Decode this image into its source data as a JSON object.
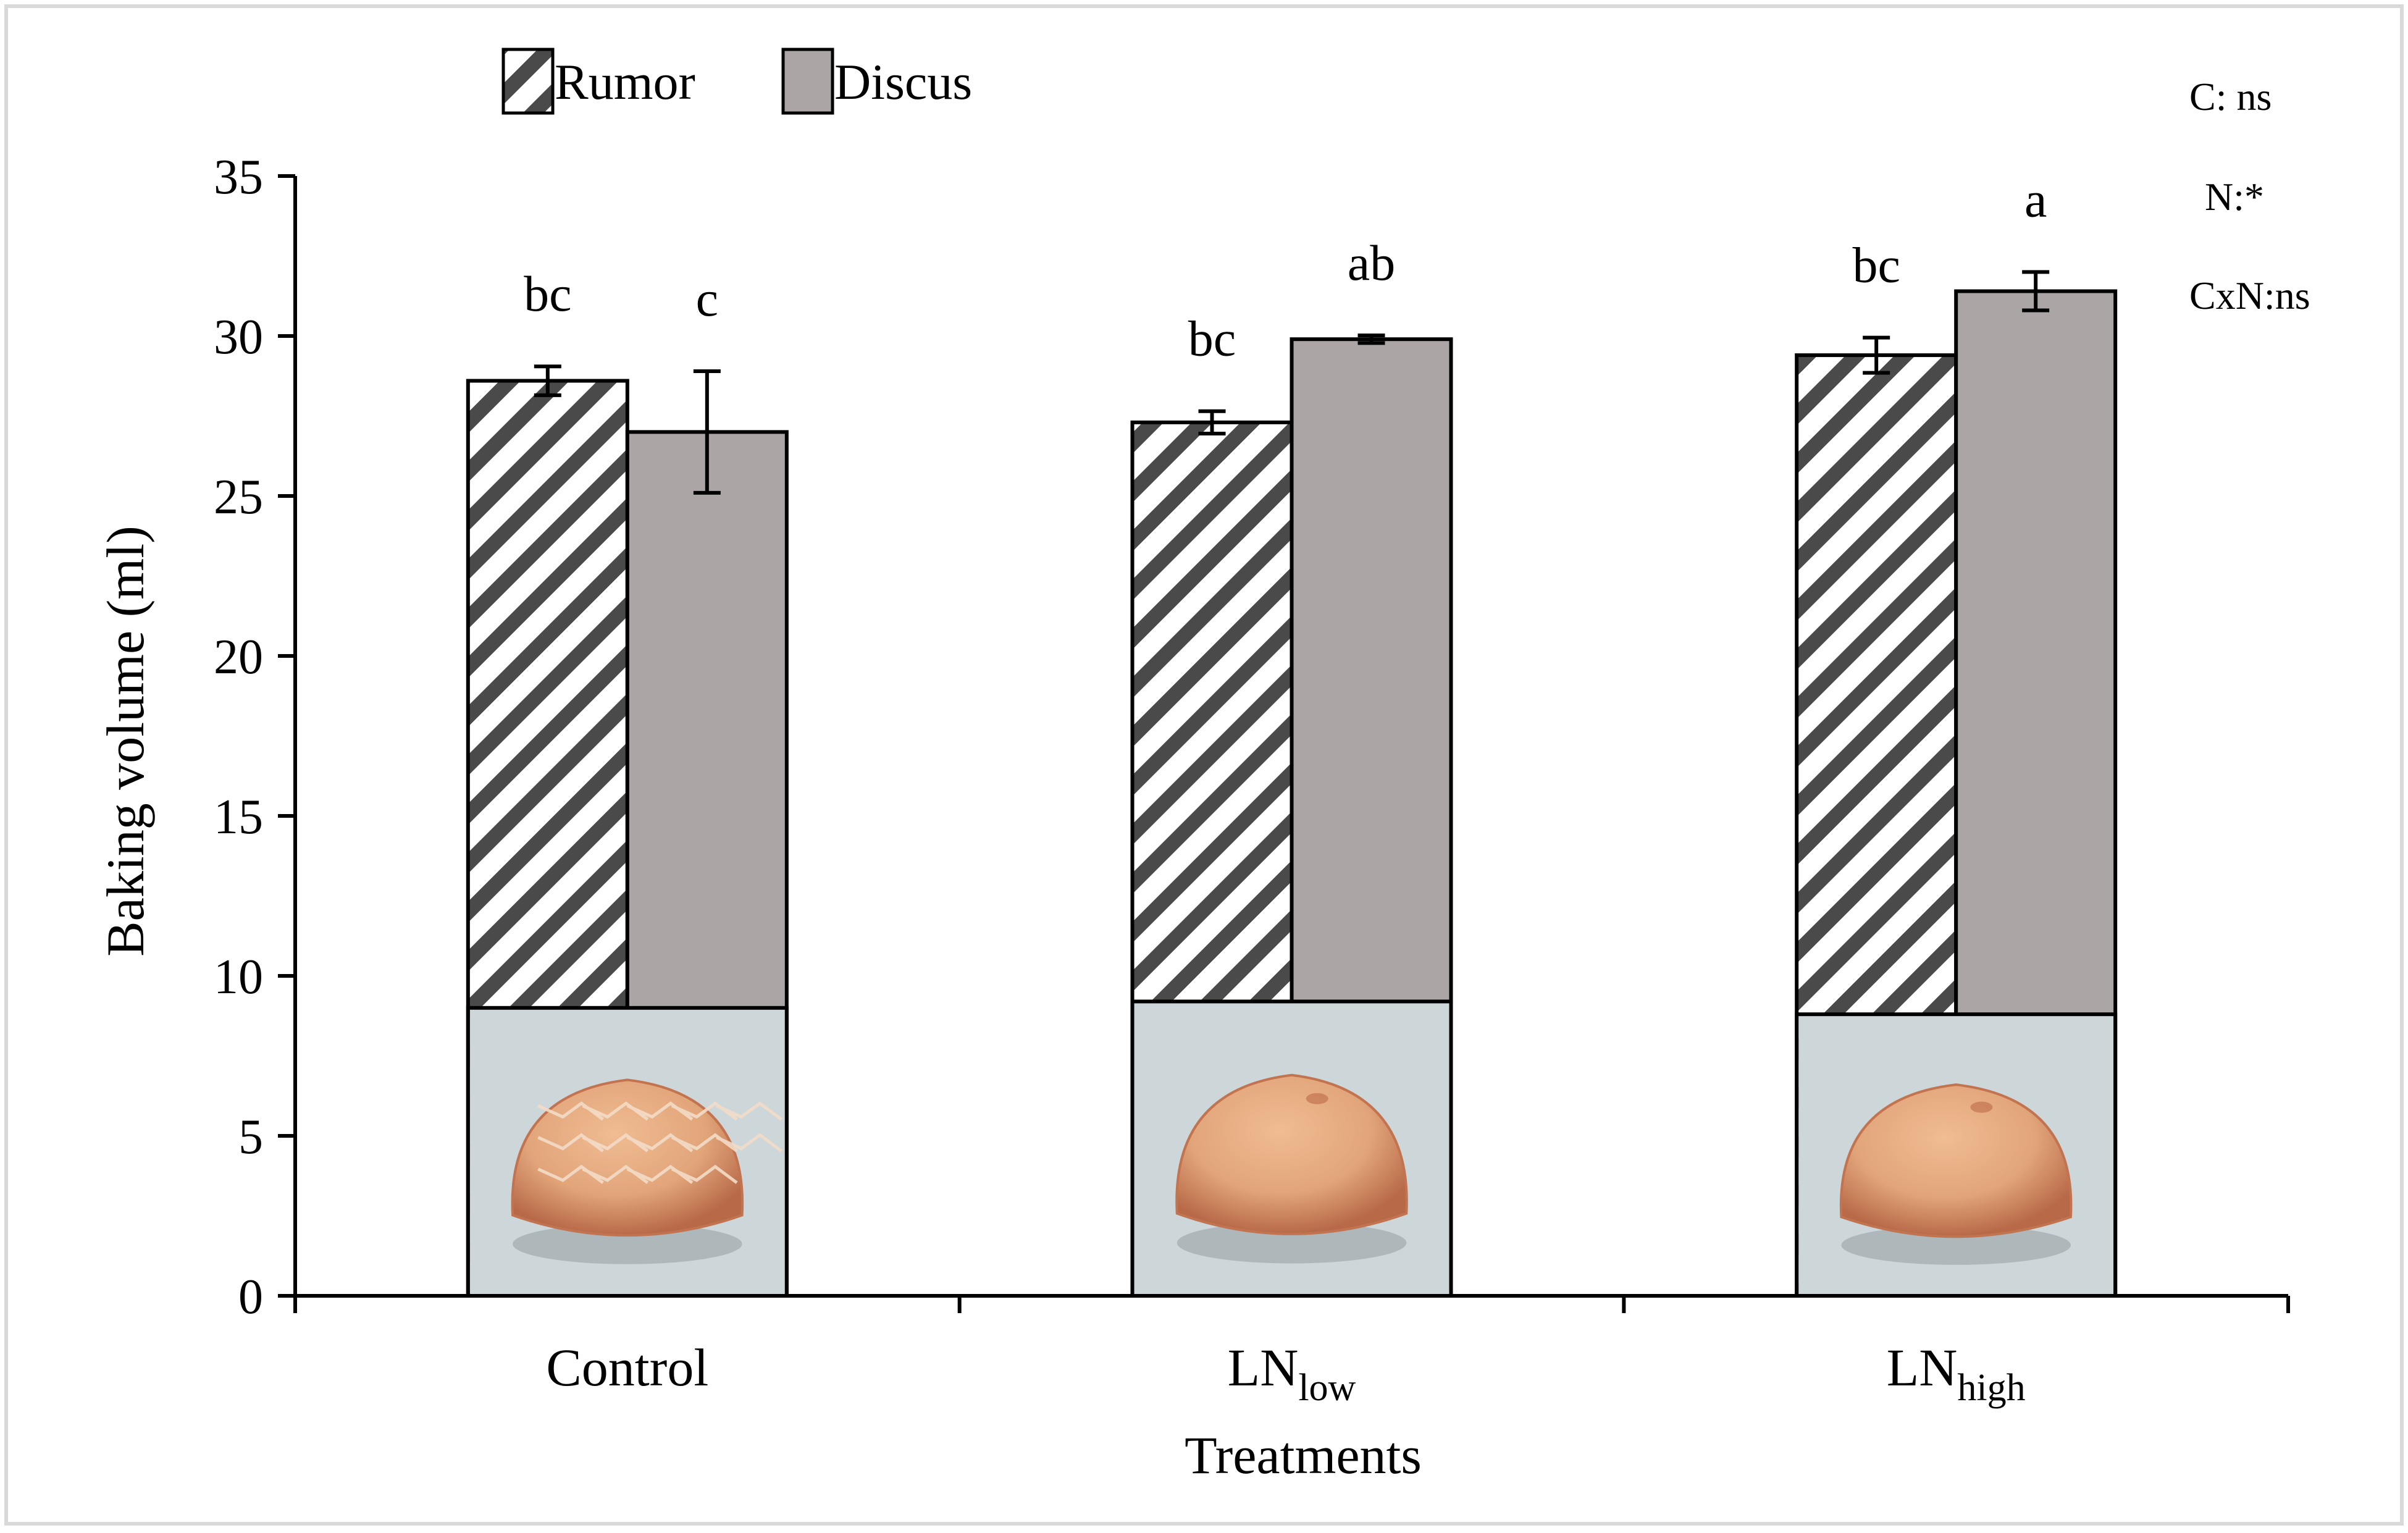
{
  "chart_data": {
    "type": "bar",
    "title": "",
    "xlabel": "Treatments",
    "ylabel": "Baking volume (ml)",
    "ylim": [
      0,
      35
    ],
    "yticks": [
      0,
      5,
      10,
      15,
      20,
      25,
      30,
      35
    ],
    "grid": false,
    "legend_position": "top-left",
    "categories": [
      {
        "main": "Control",
        "sub": ""
      },
      {
        "main": "LN",
        "sub": "low"
      },
      {
        "main": "LN",
        "sub": "high"
      }
    ],
    "series": [
      {
        "name": "Rumor",
        "pattern": "diagonal-stripes",
        "values": [
          28.6,
          27.3,
          29.4
        ],
        "errors": [
          0.45,
          0.35,
          0.55
        ],
        "letters": [
          "bc",
          "bc",
          "bc"
        ]
      },
      {
        "name": "Discus",
        "color": "#aca5a5",
        "values": [
          27.0,
          29.9,
          31.4
        ],
        "errors": [
          1.9,
          0.12,
          0.6
        ],
        "letters": [
          "c",
          "ab",
          "a"
        ]
      }
    ],
    "annotations": [
      "C: ns",
      "N:*",
      "CxN:ns"
    ],
    "photo_heights": [
      9.0,
      9.2,
      8.8
    ]
  },
  "colors": {
    "discus_fill": "#aca5a5",
    "stripe": "#4a4a4a",
    "axis": "#000000",
    "frame": "#d9d9d9",
    "photo_bg": "#cdd7d9",
    "bun_light": "#e2a57a",
    "bun_dark": "#c27450"
  }
}
